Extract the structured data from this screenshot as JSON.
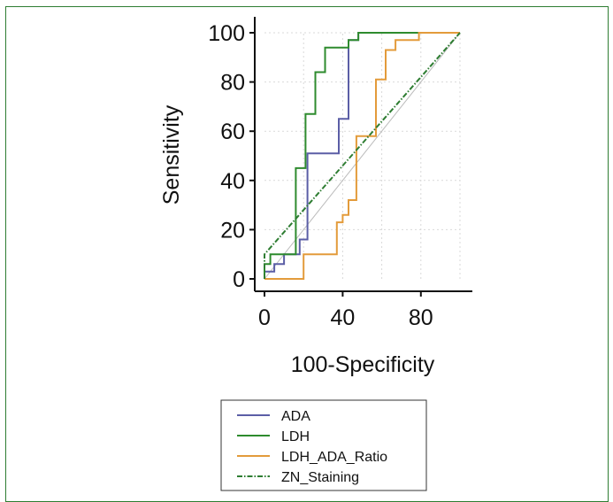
{
  "chart_data": {
    "type": "line",
    "title": "",
    "xlabel": "100-Specificity",
    "ylabel": "Sensitivity",
    "xlim": [
      0,
      100
    ],
    "ylim": [
      0,
      100
    ],
    "x_ticks": [
      0,
      40,
      80
    ],
    "y_ticks": [
      0,
      20,
      40,
      60,
      80,
      100
    ],
    "grid": true,
    "legend_position": "bottom",
    "reference_line": [
      [
        0,
        0
      ],
      [
        100,
        100
      ]
    ],
    "series": [
      {
        "name": "ADA",
        "color": "#5b5ea6",
        "points": [
          [
            0,
            0
          ],
          [
            0,
            3
          ],
          [
            5,
            3
          ],
          [
            5,
            6
          ],
          [
            10,
            6
          ],
          [
            10,
            10
          ],
          [
            18,
            10
          ],
          [
            18,
            16
          ],
          [
            22,
            16
          ],
          [
            22,
            51
          ],
          [
            38,
            51
          ],
          [
            38,
            65
          ],
          [
            43,
            65
          ],
          [
            43,
            97
          ],
          [
            48,
            97
          ],
          [
            48,
            100
          ],
          [
            100,
            100
          ]
        ]
      },
      {
        "name": "LDH",
        "color": "#2e8b2e",
        "points": [
          [
            0,
            0
          ],
          [
            0,
            6
          ],
          [
            3,
            6
          ],
          [
            3,
            10
          ],
          [
            16,
            10
          ],
          [
            16,
            45
          ],
          [
            21,
            45
          ],
          [
            21,
            67
          ],
          [
            26,
            67
          ],
          [
            26,
            84
          ],
          [
            31,
            84
          ],
          [
            31,
            94
          ],
          [
            43,
            94
          ],
          [
            43,
            97
          ],
          [
            48,
            97
          ],
          [
            48,
            100
          ],
          [
            100,
            100
          ]
        ]
      },
      {
        "name": "LDH_ADA_Ratio",
        "color": "#e39b3b",
        "points": [
          [
            0,
            0
          ],
          [
            20,
            0
          ],
          [
            20,
            10
          ],
          [
            37,
            10
          ],
          [
            37,
            23
          ],
          [
            40,
            23
          ],
          [
            40,
            26
          ],
          [
            43,
            26
          ],
          [
            43,
            32
          ],
          [
            47,
            32
          ],
          [
            47,
            58
          ],
          [
            57,
            58
          ],
          [
            57,
            81
          ],
          [
            62,
            81
          ],
          [
            62,
            93
          ],
          [
            67,
            93
          ],
          [
            67,
            97
          ],
          [
            79,
            97
          ],
          [
            79,
            100
          ],
          [
            100,
            100
          ]
        ]
      },
      {
        "name": "ZN_Staining",
        "color": "#2e7d32",
        "dashed": true,
        "points": [
          [
            0,
            0
          ],
          [
            0,
            10
          ],
          [
            100,
            100
          ]
        ]
      }
    ]
  }
}
